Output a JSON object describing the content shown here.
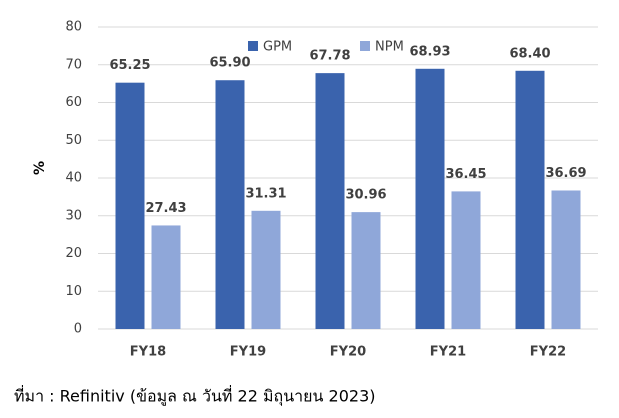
{
  "chart_data": {
    "type": "grouped_bar",
    "y_label": "%",
    "categories": [
      "FY18",
      "FY19",
      "FY20",
      "FY21",
      "FY22"
    ],
    "series": [
      {
        "name": "GPM",
        "color": "#3a63ad",
        "values": [
          65.25,
          65.9,
          67.78,
          68.93,
          68.4
        ],
        "value_labels": [
          "65.25",
          "65.90",
          "67.78",
          "68.93",
          "68.40"
        ]
      },
      {
        "name": "NPM",
        "color": "#8fa7d9",
        "values": [
          27.43,
          31.31,
          30.96,
          36.45,
          36.69
        ],
        "value_labels": [
          "27.43",
          "31.31",
          "30.96",
          "36.45",
          "36.69"
        ]
      }
    ],
    "ylim": [
      0,
      80
    ],
    "yticks": [
      0,
      10,
      20,
      30,
      40,
      50,
      60,
      70,
      80
    ],
    "grid": true,
    "legend": "top",
    "source": "ที่มา : Refinitiv (ข้อมูล ณ วันที่ 22 มิถุนายน 2023)"
  }
}
